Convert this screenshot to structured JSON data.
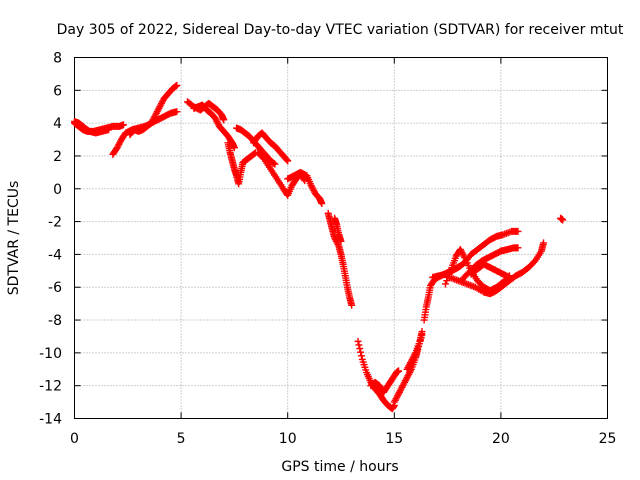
{
  "chart_data": {
    "type": "scatter",
    "title": "Day 305 of 2022, Sidereal Day-to-day VTEC variation (SDTVAR) for receiver mtut",
    "xlabel": "GPS time / hours",
    "ylabel": "SDTVAR / TECUs",
    "xlim": [
      0,
      25
    ],
    "ylim": [
      -14,
      8
    ],
    "xticks": [
      0,
      5,
      10,
      15,
      20,
      25
    ],
    "yticks": [
      -14,
      -12,
      -10,
      -8,
      -6,
      -4,
      -2,
      0,
      2,
      4,
      6,
      8
    ],
    "grid": true,
    "marker": "+",
    "color": "#ff0000",
    "series": [
      {
        "points": [
          [
            0.0,
            4.0
          ],
          [
            0.2,
            3.8
          ],
          [
            0.4,
            3.6
          ],
          [
            0.6,
            3.5
          ],
          [
            0.9,
            3.5
          ],
          [
            1.2,
            3.6
          ],
          [
            1.5,
            3.7
          ],
          [
            1.8,
            3.8
          ],
          [
            2.1,
            3.8
          ],
          [
            2.3,
            3.9
          ]
        ]
      },
      {
        "points": [
          [
            0.0,
            4.1
          ],
          [
            0.2,
            4.0
          ],
          [
            0.4,
            3.8
          ],
          [
            0.7,
            3.5
          ],
          [
            1.0,
            3.4
          ],
          [
            1.3,
            3.5
          ],
          [
            1.6,
            3.6
          ]
        ]
      },
      {
        "points": [
          [
            1.8,
            2.1
          ],
          [
            2.0,
            2.5
          ],
          [
            2.2,
            3.0
          ],
          [
            2.4,
            3.4
          ],
          [
            2.7,
            3.6
          ],
          [
            3.0,
            3.7
          ],
          [
            3.3,
            3.8
          ],
          [
            3.6,
            4.0
          ],
          [
            3.9,
            4.2
          ],
          [
            4.2,
            4.4
          ],
          [
            4.5,
            4.6
          ],
          [
            4.8,
            4.7
          ]
        ]
      },
      {
        "points": [
          [
            2.6,
            3.3
          ],
          [
            2.8,
            3.6
          ],
          [
            3.0,
            3.5
          ],
          [
            3.2,
            3.6
          ],
          [
            3.4,
            3.8
          ],
          [
            3.6,
            4.0
          ],
          [
            3.8,
            4.5
          ],
          [
            4.0,
            5.0
          ],
          [
            4.2,
            5.5
          ],
          [
            4.4,
            5.8
          ],
          [
            4.6,
            6.1
          ],
          [
            4.8,
            6.3
          ]
        ]
      },
      {
        "points": [
          [
            5.3,
            5.3
          ],
          [
            5.6,
            5.0
          ],
          [
            5.9,
            4.8
          ],
          [
            6.1,
            5.0
          ],
          [
            6.3,
            5.2
          ],
          [
            6.5,
            5.0
          ],
          [
            6.7,
            4.8
          ],
          [
            6.9,
            4.5
          ],
          [
            7.0,
            4.2
          ]
        ]
      },
      {
        "points": [
          [
            5.6,
            4.9
          ],
          [
            5.8,
            5.0
          ],
          [
            6.0,
            5.1
          ],
          [
            6.2,
            4.8
          ],
          [
            6.4,
            4.6
          ],
          [
            6.6,
            4.3
          ],
          [
            6.8,
            3.8
          ],
          [
            7.0,
            3.5
          ],
          [
            7.2,
            3.2
          ],
          [
            7.4,
            2.8
          ],
          [
            7.5,
            2.5
          ]
        ]
      },
      {
        "points": [
          [
            7.2,
            2.8
          ],
          [
            7.3,
            2.2
          ],
          [
            7.4,
            1.7
          ],
          [
            7.5,
            1.2
          ],
          [
            7.6,
            0.8
          ],
          [
            7.7,
            0.3
          ],
          [
            7.8,
            1.0
          ],
          [
            7.9,
            1.6
          ],
          [
            8.1,
            1.8
          ],
          [
            8.3,
            2.0
          ],
          [
            8.5,
            2.2
          ]
        ]
      },
      {
        "points": [
          [
            7.6,
            3.7
          ],
          [
            7.8,
            3.6
          ],
          [
            8.0,
            3.4
          ],
          [
            8.2,
            3.2
          ],
          [
            8.4,
            2.9
          ],
          [
            8.6,
            2.6
          ],
          [
            8.8,
            2.3
          ],
          [
            9.0,
            2.0
          ],
          [
            9.2,
            1.7
          ],
          [
            9.4,
            1.5
          ]
        ]
      },
      {
        "points": [
          [
            8.4,
            2.8
          ],
          [
            8.6,
            3.2
          ],
          [
            8.8,
            3.4
          ],
          [
            9.0,
            3.1
          ],
          [
            9.2,
            2.8
          ],
          [
            9.4,
            2.6
          ],
          [
            9.6,
            2.3
          ],
          [
            9.8,
            2.0
          ],
          [
            10.0,
            1.7
          ]
        ]
      },
      {
        "points": [
          [
            8.6,
            2.2
          ],
          [
            8.9,
            1.8
          ],
          [
            9.2,
            1.2
          ],
          [
            9.5,
            0.6
          ],
          [
            9.8,
            0.0
          ],
          [
            10.0,
            -0.4
          ],
          [
            10.2,
            0.2
          ],
          [
            10.4,
            0.6
          ],
          [
            10.6,
            0.9
          ],
          [
            10.8,
            0.5
          ]
        ]
      },
      {
        "points": [
          [
            10.0,
            0.6
          ],
          [
            10.3,
            0.8
          ],
          [
            10.6,
            1.0
          ],
          [
            10.9,
            0.8
          ],
          [
            11.1,
            0.2
          ],
          [
            11.3,
            -0.3
          ],
          [
            11.5,
            -0.6
          ],
          [
            11.6,
            -0.9
          ]
        ]
      },
      {
        "points": [
          [
            11.9,
            -1.5
          ],
          [
            12.0,
            -2.0
          ],
          [
            12.1,
            -2.5
          ],
          [
            12.2,
            -3.0
          ],
          [
            12.4,
            -3.5
          ],
          [
            12.5,
            -4.0
          ],
          [
            12.6,
            -4.6
          ],
          [
            12.7,
            -5.3
          ],
          [
            12.8,
            -6.0
          ],
          [
            12.9,
            -6.6
          ],
          [
            13.0,
            -7.1
          ]
        ]
      },
      {
        "points": [
          [
            12.2,
            -1.8
          ],
          [
            12.3,
            -2.2
          ],
          [
            12.4,
            -2.8
          ],
          [
            12.5,
            -3.2
          ]
        ]
      },
      {
        "points": [
          [
            13.3,
            -9.3
          ],
          [
            13.5,
            -10.4
          ],
          [
            13.7,
            -11.2
          ],
          [
            13.9,
            -11.8
          ],
          [
            14.1,
            -12.2
          ],
          [
            14.3,
            -12.5
          ],
          [
            14.5,
            -12.9
          ],
          [
            14.7,
            -13.2
          ],
          [
            14.9,
            -13.4
          ],
          [
            15.0,
            -13.2
          ]
        ]
      },
      {
        "points": [
          [
            13.9,
            -12.0
          ],
          [
            14.1,
            -11.8
          ],
          [
            14.3,
            -12.0
          ],
          [
            14.5,
            -12.4
          ],
          [
            14.7,
            -12.0
          ],
          [
            14.9,
            -11.6
          ],
          [
            15.1,
            -11.2
          ],
          [
            15.2,
            -11.1
          ]
        ]
      },
      {
        "points": [
          [
            15.0,
            -13.0
          ],
          [
            15.2,
            -12.5
          ],
          [
            15.4,
            -12.0
          ],
          [
            15.6,
            -11.5
          ],
          [
            15.8,
            -11.0
          ],
          [
            16.0,
            -10.3
          ],
          [
            16.1,
            -9.8
          ],
          [
            16.3,
            -8.9
          ]
        ]
      },
      {
        "points": [
          [
            15.6,
            -11.0
          ],
          [
            15.8,
            -10.5
          ],
          [
            16.0,
            -10.0
          ],
          [
            16.2,
            -9.3
          ],
          [
            16.3,
            -8.7
          ]
        ]
      },
      {
        "points": [
          [
            16.4,
            -8.0
          ],
          [
            16.5,
            -7.2
          ],
          [
            16.6,
            -6.6
          ],
          [
            16.7,
            -5.9
          ],
          [
            16.9,
            -5.5
          ],
          [
            17.2,
            -5.3
          ],
          [
            17.5,
            -5.1
          ],
          [
            17.8,
            -4.9
          ],
          [
            18.1,
            -4.7
          ]
        ]
      },
      {
        "points": [
          [
            16.8,
            -5.4
          ],
          [
            17.1,
            -5.3
          ],
          [
            17.4,
            -5.2
          ],
          [
            17.7,
            -5.0
          ],
          [
            18.0,
            -4.8
          ],
          [
            18.3,
            -4.5
          ],
          [
            18.6,
            -4.0
          ],
          [
            18.9,
            -3.7
          ],
          [
            19.2,
            -3.4
          ],
          [
            19.5,
            -3.1
          ],
          [
            19.8,
            -2.9
          ],
          [
            20.1,
            -2.8
          ],
          [
            20.5,
            -2.6
          ],
          [
            20.8,
            -2.6
          ]
        ]
      },
      {
        "points": [
          [
            17.4,
            -5.8
          ],
          [
            17.7,
            -4.8
          ],
          [
            17.9,
            -4.1
          ],
          [
            18.1,
            -3.7
          ],
          [
            18.3,
            -4.2
          ],
          [
            18.6,
            -5.0
          ],
          [
            18.9,
            -5.6
          ],
          [
            19.2,
            -6.0
          ],
          [
            19.5,
            -6.2
          ],
          [
            19.8,
            -6.0
          ],
          [
            20.1,
            -5.7
          ],
          [
            20.4,
            -5.3
          ]
        ]
      },
      {
        "points": [
          [
            17.6,
            -5.4
          ],
          [
            18.0,
            -5.6
          ],
          [
            18.4,
            -5.8
          ],
          [
            18.8,
            -6.0
          ],
          [
            19.2,
            -6.3
          ],
          [
            19.5,
            -6.4
          ],
          [
            19.8,
            -6.2
          ],
          [
            20.1,
            -5.9
          ],
          [
            20.4,
            -5.6
          ],
          [
            20.7,
            -5.3
          ],
          [
            21.0,
            -5.1
          ],
          [
            21.3,
            -4.8
          ],
          [
            21.6,
            -4.4
          ],
          [
            21.9,
            -3.8
          ],
          [
            22.0,
            -3.3
          ]
        ]
      },
      {
        "points": [
          [
            18.2,
            -5.5
          ],
          [
            18.5,
            -5.1
          ],
          [
            18.8,
            -4.7
          ],
          [
            19.1,
            -4.4
          ],
          [
            19.4,
            -4.2
          ],
          [
            19.7,
            -4.0
          ],
          [
            20.0,
            -3.8
          ],
          [
            20.3,
            -3.7
          ],
          [
            20.6,
            -3.6
          ],
          [
            20.8,
            -3.6
          ]
        ]
      },
      {
        "points": [
          [
            18.6,
            -5.2
          ],
          [
            18.9,
            -4.9
          ],
          [
            19.2,
            -4.6
          ],
          [
            19.5,
            -4.8
          ],
          [
            19.8,
            -5.0
          ],
          [
            20.1,
            -5.2
          ],
          [
            20.4,
            -5.4
          ]
        ]
      },
      {
        "points": [
          [
            22.8,
            -1.8
          ],
          [
            22.9,
            -1.9
          ]
        ]
      }
    ]
  }
}
